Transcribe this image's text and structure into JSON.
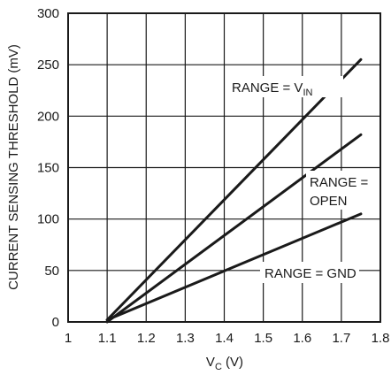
{
  "chart_data": {
    "type": "line",
    "title": "",
    "xlabel_main": "V",
    "xlabel_sub": "C",
    "xlabel_unit": " (V)",
    "ylabel": "CURRENT SENSING THRESHOLD (mV)",
    "xlim": [
      1.0,
      1.8
    ],
    "ylim": [
      0,
      300
    ],
    "xticks": [
      1,
      1.1,
      1.2,
      1.3,
      1.4,
      1.5,
      1.6,
      1.7,
      1.8
    ],
    "xtick_labels": [
      "1",
      "1.1",
      "1.2",
      "1.3",
      "1.4",
      "1.5",
      "1.6",
      "1.7",
      "1.8"
    ],
    "yticks": [
      0,
      50,
      100,
      150,
      200,
      250,
      300
    ],
    "ytick_labels": [
      "0",
      "50",
      "100",
      "150",
      "200",
      "250",
      "300"
    ],
    "grid": true,
    "series": [
      {
        "name": "RANGE = VIN",
        "label_main": "RANGE = V",
        "label_sub": "IN",
        "x": [
          1.1,
          1.75
        ],
        "y": [
          2,
          255
        ]
      },
      {
        "name": "RANGE = OPEN",
        "label_line1": "RANGE =",
        "label_line2": "OPEN",
        "x": [
          1.1,
          1.75
        ],
        "y": [
          0,
          182
        ]
      },
      {
        "name": "RANGE = GND",
        "label_main": "RANGE = GND",
        "x": [
          1.1,
          1.75
        ],
        "y": [
          2,
          105
        ]
      }
    ]
  }
}
